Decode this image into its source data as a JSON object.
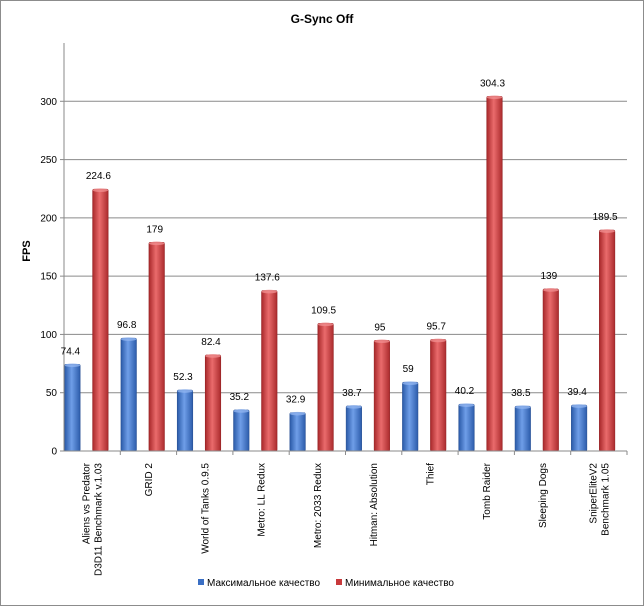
{
  "chart_data": {
    "type": "bar",
    "title": "G-Sync  Off",
    "xlabel": "",
    "ylabel": "FPS",
    "ylim": [
      0,
      350
    ],
    "yticks": [
      0,
      50,
      100,
      150,
      200,
      250,
      300
    ],
    "grid": true,
    "legend_position": "bottom",
    "categories": [
      [
        "Aliens  vs  Predator",
        "D3D11 Benchmark v.1.03"
      ],
      [
        "GRID 2"
      ],
      [
        "World of Tanks 0.9.5"
      ],
      [
        "Metro: LL Redux"
      ],
      [
        "Metro: 2033 Redux"
      ],
      [
        "Hitman: Absolution"
      ],
      [
        "Thief"
      ],
      [
        "Tomb Raider"
      ],
      [
        "Sleeping Dogs"
      ],
      [
        "SniperEliteV2",
        "Benchmark 1.05"
      ]
    ],
    "series": [
      {
        "name": "Максимальное качество",
        "color": "#3a6fc4",
        "values": [
          74.4,
          96.8,
          52.3,
          35.2,
          32.9,
          38.7,
          59,
          40.2,
          38.5,
          39.4
        ],
        "labels": [
          "74.4",
          "96.8",
          "52.3",
          "35.2",
          "32.9",
          "38.7",
          "59",
          "40.2",
          "38.5",
          "39.4"
        ]
      },
      {
        "name": "Минимальное качество",
        "color": "#c8393b",
        "values": [
          224.6,
          179,
          82.4,
          137.6,
          109.5,
          95,
          95.7,
          304.3,
          139,
          189.5
        ],
        "labels": [
          "224.6",
          "179",
          "82.4",
          "137.6",
          "109.5",
          "95",
          "95.7",
          "304.3",
          "139",
          "189.5"
        ]
      }
    ]
  }
}
